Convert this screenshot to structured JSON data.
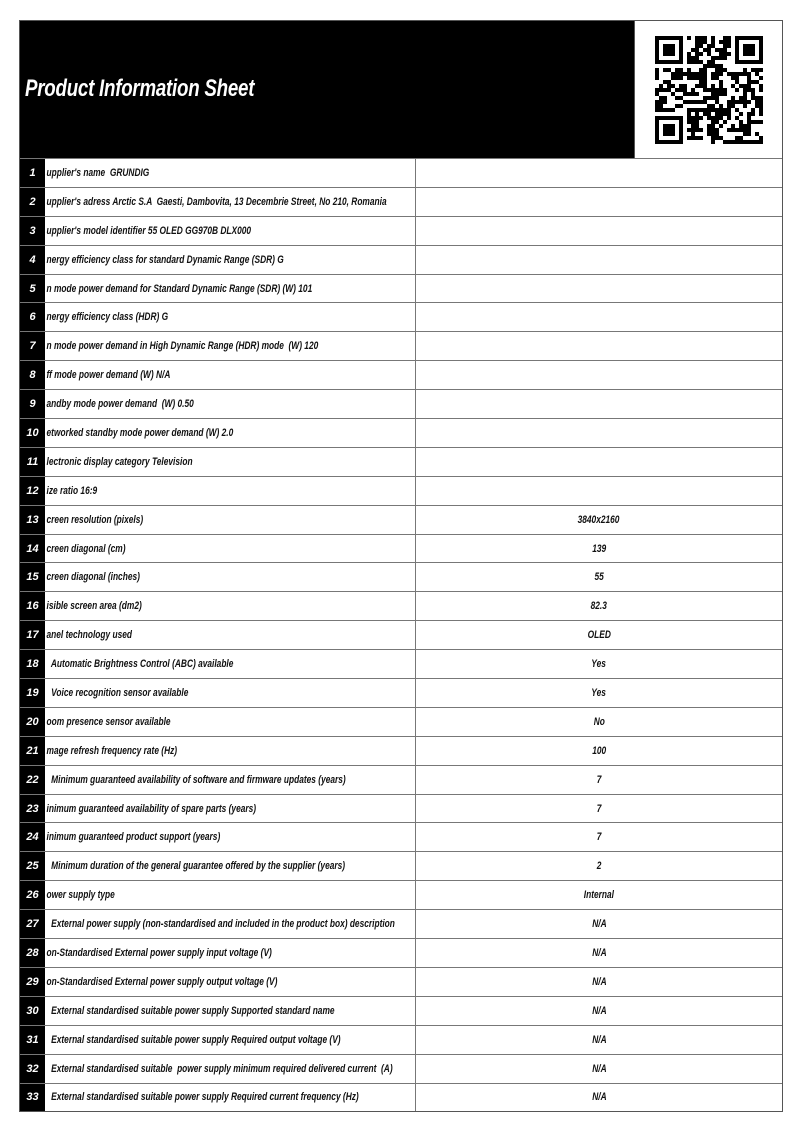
{
  "header": {
    "title": "Product Information Sheet"
  },
  "table": {
    "rows": [
      {
        "number": "1",
        "label": "upplier's name  GRUNDIG"
      },
      {
        "number": "2",
        "label": "upplier's adress Arctic S.A  Gaesti, Dambovita, 13 Decembrie Street, No 210, Romania"
      },
      {
        "number": "3",
        "label": "upplier's model identifier 55 OLED GG970B DLX000"
      },
      {
        "number": "4",
        "label": "nergy efficiency class for standard Dynamic Range (SDR) G"
      },
      {
        "number": "5",
        "label": "n mode power demand for Standard Dynamic Range (SDR) (W) 101"
      },
      {
        "number": "6",
        "label": "nergy efficiency class (HDR) G"
      },
      {
        "number": "7",
        "label": "n mode power demand in High Dynamic Range (HDR) mode  (W) 120"
      },
      {
        "number": "8",
        "label": "ff mode power demand (W) N/A"
      },
      {
        "number": "9",
        "label": "andby mode power demand  (W) 0.50"
      },
      {
        "number": "10",
        "label": "etworked standby mode power demand (W) 2.0"
      },
      {
        "number": "11",
        "label": "lectronic display category Television"
      },
      {
        "number": "12",
        "label": "ize ratio 16:9"
      },
      {
        "number": "13",
        "label": "creen resolution (pixels)",
        "value": "3840x2160"
      },
      {
        "number": "14",
        "label": "creen diagonal (cm)",
        "value": "139"
      },
      {
        "number": "15",
        "label": "creen diagonal (inches)",
        "value": "55"
      },
      {
        "number": "16",
        "label": "isible screen area (dm2)",
        "value": "82.3"
      },
      {
        "number": "17",
        "label": "anel technology used",
        "value": "OLED"
      },
      {
        "number": "18",
        "label": "  Automatic Brightness Control (ABC) available",
        "value": "Yes"
      },
      {
        "number": "19",
        "label": "  Voice recognition sensor available",
        "value": "Yes"
      },
      {
        "number": "20",
        "label": "oom presence sensor available",
        "value": "No"
      },
      {
        "number": "21",
        "label": "mage refresh frequency rate (Hz)",
        "value": "100"
      },
      {
        "number": "22",
        "label": "  Minimum guaranteed availability of software and firmware updates (years)",
        "value": "7"
      },
      {
        "number": "23",
        "label": "inimum guaranteed availability of spare parts (years)",
        "value": "7"
      },
      {
        "number": "24",
        "label": "inimum guaranteed product support (years)",
        "value": "7"
      },
      {
        "number": "25",
        "label": "  Minimum duration of the general guarantee offered by the supplier (years)",
        "value": "2"
      },
      {
        "number": "26",
        "label": "ower supply type",
        "value": "Internal"
      },
      {
        "number": "27",
        "label": "  External power supply (non-standardised and included in the product box) description",
        "value": "N/A"
      },
      {
        "number": "28",
        "label": "on-Standardised External power supply input voltage (V)",
        "value": "N/A"
      },
      {
        "number": "29",
        "label": "on-Standardised External power supply output voltage (V)",
        "value": "N/A"
      },
      {
        "number": "30",
        "label": "  External standardised suitable power supply Supported standard name",
        "value": "N/A"
      },
      {
        "number": "31",
        "label": "  External standardised suitable power supply Required output voltage (V)",
        "value": "N/A"
      },
      {
        "number": "32",
        "label": "  External standardised suitable  power supply minimum required delivered current  (A)",
        "value": "N/A"
      },
      {
        "number": "33",
        "label": "  External standardised suitable power supply Required current frequency (Hz)",
        "value": "N/A"
      }
    ]
  }
}
